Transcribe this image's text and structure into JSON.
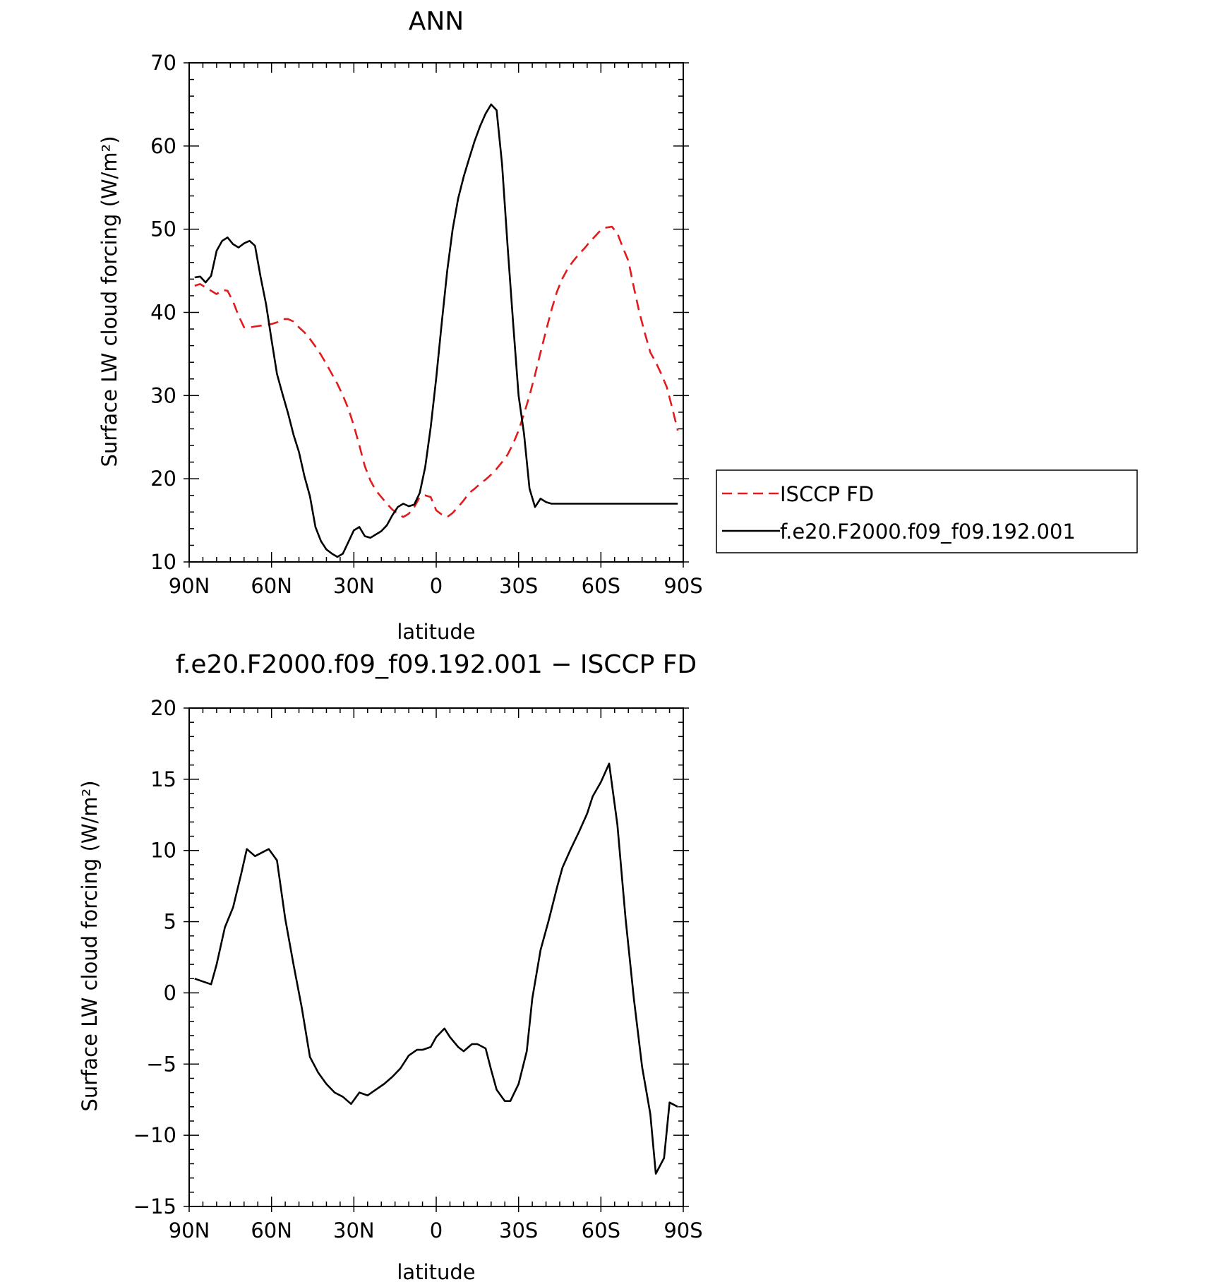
{
  "chart_data": [
    {
      "type": "line",
      "title": "ANN",
      "xlabel": "latitude",
      "ylabel": "Surface LW cloud forcing (W/m²)",
      "xlim": [
        90,
        -90
      ],
      "ylim": [
        10,
        70
      ],
      "x_ticks": [
        {
          "value": 90,
          "label": "90N"
        },
        {
          "value": 60,
          "label": "60N"
        },
        {
          "value": 30,
          "label": "30N"
        },
        {
          "value": 0,
          "label": "0"
        },
        {
          "value": -30,
          "label": "30S"
        },
        {
          "value": -60,
          "label": "60S"
        },
        {
          "value": -90,
          "label": "90S"
        }
      ],
      "y_ticks": [
        {
          "value": 10,
          "label": "10"
        },
        {
          "value": 20,
          "label": "20"
        },
        {
          "value": 30,
          "label": "30"
        },
        {
          "value": 40,
          "label": "40"
        },
        {
          "value": 50,
          "label": "50"
        },
        {
          "value": 60,
          "label": "60"
        },
        {
          "value": 70,
          "label": "70"
        }
      ],
      "legend_position": "right",
      "series": [
        {
          "name": "ISCCP FD",
          "color": "#e31a1c",
          "dash": true,
          "x": [
            88,
            86,
            84,
            82,
            80,
            78,
            76,
            74,
            72,
            70,
            68,
            66,
            64,
            62,
            60,
            58,
            56,
            54,
            52,
            50,
            48,
            46,
            44,
            42,
            40,
            38,
            36,
            34,
            32,
            30,
            28,
            26,
            24,
            22,
            20,
            18,
            16,
            14,
            12,
            10,
            8,
            6,
            4,
            2,
            0,
            -2,
            -4,
            -6,
            -8,
            -10,
            -12,
            -14,
            -16,
            -18,
            -20,
            -22,
            -24,
            -26,
            -28,
            -30,
            -32,
            -34,
            -36,
            -38,
            -40,
            -42,
            -44,
            -46,
            -48,
            -50,
            -52,
            -54,
            -56,
            -58,
            -60,
            -62,
            -64,
            -66,
            -68,
            -70,
            -72,
            -74,
            -76,
            -78,
            -80,
            -82,
            -84,
            -86,
            -88
          ],
          "y": [
            43.2,
            43.4,
            43.0,
            42.6,
            42.2,
            42.7,
            42.6,
            41.3,
            39.6,
            38.2,
            38.2,
            38.3,
            38.4,
            38.5,
            38.6,
            38.8,
            39.2,
            39.2,
            38.9,
            38.2,
            37.6,
            36.8,
            35.9,
            34.9,
            33.8,
            32.6,
            31.4,
            30.0,
            28.4,
            26.4,
            24.0,
            21.5,
            19.8,
            18.6,
            17.8,
            17.0,
            16.3,
            15.8,
            15.4,
            15.8,
            16.6,
            17.8,
            18.0,
            17.8,
            16.2,
            15.7,
            15.4,
            15.9,
            16.6,
            17.4,
            18.3,
            18.8,
            19.4,
            19.9,
            20.5,
            21.2,
            22.0,
            22.9,
            24.2,
            25.8,
            27.8,
            30.0,
            32.5,
            35.2,
            37.8,
            40.3,
            42.5,
            44.1,
            45.3,
            46.2,
            47.0,
            47.7,
            48.5,
            49.2,
            49.9,
            50.2,
            50.3,
            49.5,
            47.8,
            46.2,
            43.0,
            40.0,
            37.5,
            35.2,
            34.0,
            32.6,
            31.0,
            28.5,
            25.8
          ]
        },
        {
          "name": "f.e20.F2000.f09_f09.192.001",
          "color": "#000000",
          "dash": false,
          "x": [
            88,
            86,
            84,
            82,
            80,
            78,
            76,
            74,
            72,
            70,
            68,
            66,
            64,
            62,
            60,
            58,
            56,
            54,
            52,
            50,
            48,
            46,
            44,
            42,
            40,
            38,
            36,
            34,
            32,
            30,
            28,
            26,
            24,
            22,
            20,
            18,
            16,
            14,
            12,
            10,
            8,
            6,
            4,
            2,
            0,
            -2,
            -4,
            -6,
            -8,
            -10,
            -12,
            -14,
            -16,
            -18,
            -20,
            -22,
            -24,
            -26,
            -28,
            -30,
            -32,
            -34,
            -36,
            -38,
            -40,
            -42,
            -44,
            -46,
            -48,
            -50,
            -52,
            -54,
            -56,
            -58,
            -60,
            -62,
            -64,
            -66,
            -68,
            -70,
            -72,
            -74,
            -76,
            -78,
            -80,
            -82,
            -84,
            -86,
            -88
          ],
          "y": [
            44.2,
            44.3,
            43.6,
            44.4,
            47.4,
            48.6,
            49.0,
            48.2,
            47.8,
            48.3,
            48.6,
            48.0,
            44.3,
            41.0,
            36.7,
            32.6,
            30.2,
            27.9,
            25.3,
            23.2,
            20.3,
            17.9,
            14.2,
            12.5,
            11.5,
            11.0,
            10.6,
            11.0,
            12.4,
            13.8,
            14.2,
            13.1,
            12.9,
            13.3,
            13.7,
            14.4,
            15.6,
            16.6,
            17.0,
            16.7,
            16.9,
            18.3,
            21.4,
            26.2,
            32.1,
            38.7,
            45.0,
            50.0,
            53.7,
            56.3,
            58.5,
            60.6,
            62.4,
            63.9,
            65.0,
            64.3,
            57.8,
            48.0,
            38.8,
            30.0,
            25.4,
            18.8,
            16.6,
            17.6,
            17.2,
            17.0,
            17.0,
            17.0,
            17.0,
            17.0,
            17.0,
            17.0,
            17.0,
            17.0,
            17.0,
            17.0,
            17.0,
            17.0,
            17.0,
            17.0,
            17.0,
            17.0,
            17.0,
            17.0,
            17.0,
            17.0,
            17.0,
            17.0,
            17.0
          ]
        }
      ]
    },
    {
      "type": "line",
      "title": "f.e20.F2000.f09_f09.192.001 − ISCCP FD",
      "xlabel": "latitude",
      "ylabel": "Surface LW cloud forcing (W/m²)",
      "xlim": [
        90,
        -90
      ],
      "ylim": [
        -15,
        20
      ],
      "x_ticks": [
        {
          "value": 90,
          "label": "90N"
        },
        {
          "value": 60,
          "label": "60N"
        },
        {
          "value": 30,
          "label": "30N"
        },
        {
          "value": 0,
          "label": "0"
        },
        {
          "value": -30,
          "label": "30S"
        },
        {
          "value": -60,
          "label": "60S"
        },
        {
          "value": -90,
          "label": "90S"
        }
      ],
      "y_ticks": [
        {
          "value": -15,
          "label": "−15"
        },
        {
          "value": -10,
          "label": "−10"
        },
        {
          "value": -5,
          "label": "−5"
        },
        {
          "value": 0,
          "label": "0"
        },
        {
          "value": 5,
          "label": "5"
        },
        {
          "value": 10,
          "label": "10"
        },
        {
          "value": 15,
          "label": "15"
        },
        {
          "value": 20,
          "label": "20"
        }
      ],
      "series": [
        {
          "color": "#000000",
          "dash": false,
          "x": [
            88,
            85,
            82,
            80,
            77,
            74,
            71,
            69,
            66,
            63,
            61,
            58,
            55,
            52,
            49,
            46,
            43,
            40,
            37,
            34,
            31,
            28,
            25,
            22,
            19,
            16,
            13,
            10,
            7,
            5,
            2,
            0,
            -3,
            -5,
            -8,
            -10,
            -13,
            -15,
            -18,
            -20,
            -22,
            -25,
            -27,
            -30,
            -33,
            -35,
            -38,
            -41,
            -44,
            -46,
            -49,
            -52,
            -55,
            -57,
            -60,
            -63,
            -66,
            -69,
            -72,
            -75,
            -78,
            -80,
            -83,
            -85,
            -88
          ],
          "y": [
            1.0,
            0.8,
            0.6,
            2.0,
            4.6,
            6.0,
            8.4,
            10.1,
            9.6,
            9.9,
            10.1,
            9.3,
            5.2,
            2.0,
            -1.0,
            -4.5,
            -5.6,
            -6.4,
            -7.0,
            -7.3,
            -7.8,
            -7.0,
            -7.2,
            -6.8,
            -6.4,
            -5.9,
            -5.3,
            -4.4,
            -4.0,
            -4.0,
            -3.8,
            -3.1,
            -2.5,
            -3.1,
            -3.8,
            -4.1,
            -3.6,
            -3.6,
            -3.9,
            -5.4,
            -6.8,
            -7.6,
            -7.6,
            -6.4,
            -4.1,
            -0.4,
            3.0,
            5.1,
            7.4,
            8.8,
            10.1,
            11.3,
            12.6,
            13.8,
            14.8,
            16.1,
            11.8,
            5.2,
            -0.4,
            -5.2,
            -8.5,
            -12.7,
            -11.6,
            -7.7,
            -8.0
          ]
        }
      ]
    }
  ]
}
